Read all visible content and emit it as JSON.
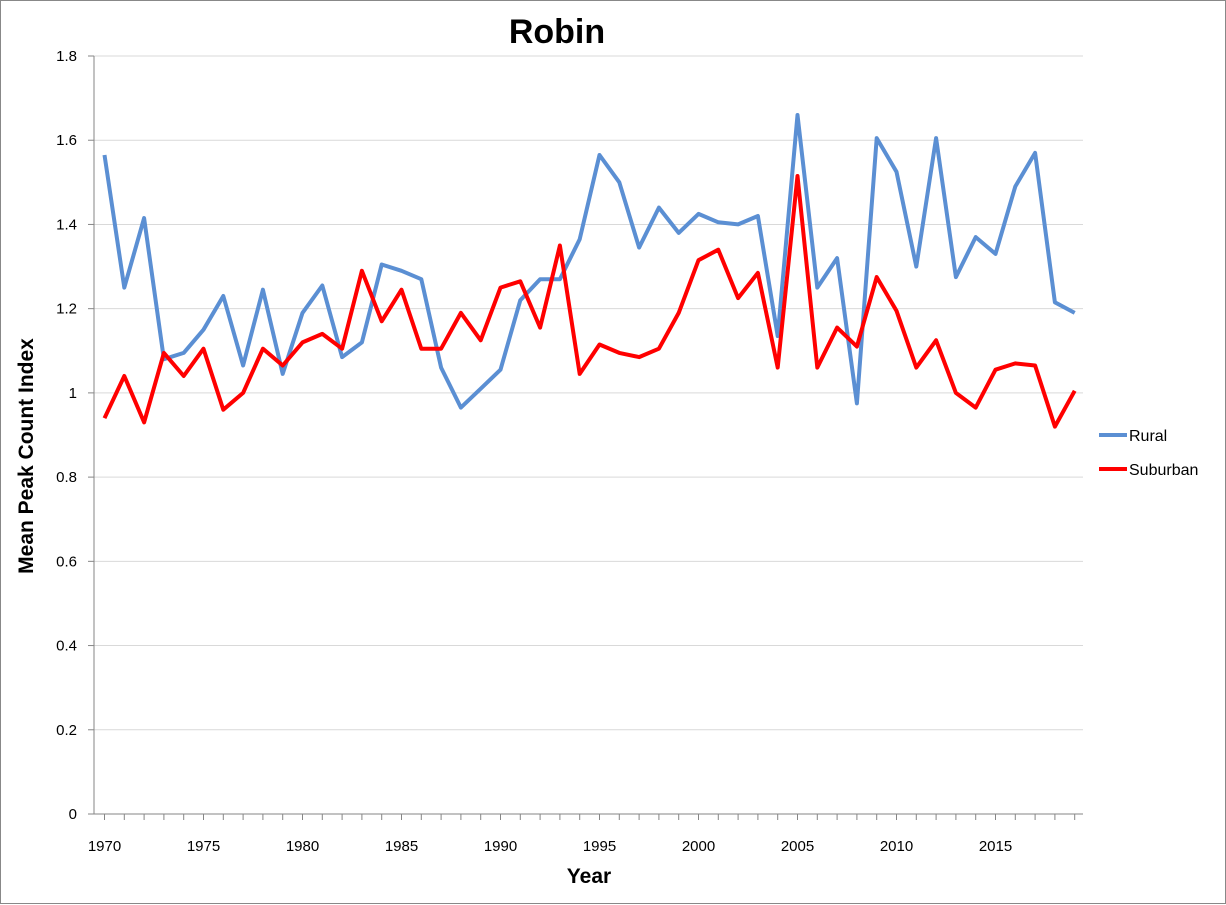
{
  "chart_data": {
    "type": "line",
    "title": "Robin",
    "xlabel": "Year",
    "ylabel": "Mean Peak Count Index",
    "xlim": [
      1970,
      2019
    ],
    "ylim": [
      0,
      1.8
    ],
    "y_ticks": [
      "0",
      "0.2",
      "0.4",
      "0.6",
      "0.8",
      "1",
      "1.2",
      "1.4",
      "1.6",
      "1.8"
    ],
    "x_ticks": [
      "1970",
      "1975",
      "1980",
      "1985",
      "1990",
      "1995",
      "2000",
      "2005",
      "2010",
      "2015"
    ],
    "grid": "horizontal",
    "legend_position": "right",
    "x": [
      1970,
      1971,
      1972,
      1973,
      1974,
      1975,
      1976,
      1977,
      1978,
      1979,
      1980,
      1981,
      1982,
      1983,
      1984,
      1985,
      1986,
      1987,
      1988,
      1989,
      1990,
      1991,
      1992,
      1993,
      1994,
      1995,
      1996,
      1997,
      1998,
      1999,
      2000,
      2001,
      2002,
      2003,
      2004,
      2005,
      2006,
      2007,
      2008,
      2009,
      2010,
      2011,
      2012,
      2013,
      2014,
      2015,
      2016,
      2017,
      2018,
      2019
    ],
    "series": [
      {
        "name": "Rural",
        "color": "#5b8fd3",
        "values": [
          1.565,
          1.25,
          1.415,
          1.08,
          1.095,
          1.15,
          1.23,
          1.065,
          1.245,
          1.045,
          1.19,
          1.255,
          1.085,
          1.12,
          1.305,
          1.29,
          1.27,
          1.06,
          0.965,
          1.01,
          1.055,
          1.22,
          1.27,
          1.27,
          1.365,
          1.565,
          1.5,
          1.345,
          1.44,
          1.38,
          1.425,
          1.405,
          1.4,
          1.42,
          1.135,
          1.66,
          1.25,
          1.32,
          0.975,
          1.605,
          1.525,
          1.3,
          1.605,
          1.275,
          1.37,
          1.33,
          1.49,
          1.57,
          1.215,
          1.19
        ]
      },
      {
        "name": "Suburban",
        "color": "#ff0000",
        "values": [
          0.94,
          1.04,
          0.93,
          1.095,
          1.04,
          1.105,
          0.96,
          1.0,
          1.105,
          1.065,
          1.12,
          1.14,
          1.105,
          1.29,
          1.17,
          1.245,
          1.105,
          1.105,
          1.19,
          1.125,
          1.25,
          1.265,
          1.155,
          1.35,
          1.045,
          1.115,
          1.095,
          1.085,
          1.105,
          1.19,
          1.315,
          1.34,
          1.225,
          1.285,
          1.06,
          1.515,
          1.06,
          1.155,
          1.11,
          1.275,
          1.195,
          1.06,
          1.125,
          1.0,
          0.965,
          1.055,
          1.07,
          1.065,
          0.92,
          1.005
        ]
      }
    ]
  }
}
